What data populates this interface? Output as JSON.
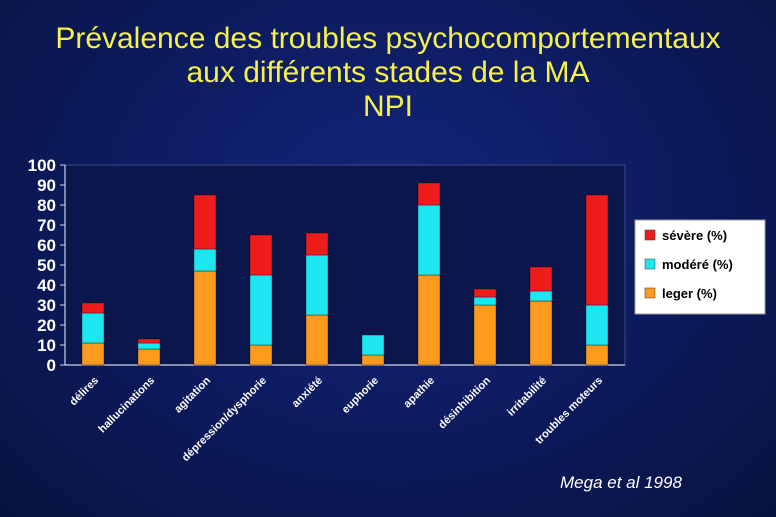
{
  "title": {
    "line1": "Prévalence des troubles psychocomportementaux",
    "line2": "aux différents stades de la MA",
    "line3": "NPI"
  },
  "source": "Mega et al 1998",
  "colors": {
    "severe": "#ee1c1c",
    "modere": "#1ee6f0",
    "leger": "#ff9a1e",
    "plot_bg": "#0a164c",
    "axis": "#cfd4e8",
    "title": "#f5f04a"
  },
  "chart_data": {
    "type": "bar",
    "stacked": true,
    "categories": [
      "délires",
      "hallucinations",
      "agitation",
      "dépression/dysphorie",
      "anxiété",
      "euphorie",
      "apathie",
      "désinhibition",
      "irritabilité",
      "troubles moteurs"
    ],
    "series": [
      {
        "name": "leger (%)",
        "values": [
          11,
          8,
          47,
          10,
          25,
          5,
          45,
          30,
          32,
          10
        ]
      },
      {
        "name": "modéré (%)",
        "values": [
          15,
          3,
          11,
          35,
          30,
          10,
          35,
          4,
          5,
          20
        ]
      },
      {
        "name": "sévère (%)",
        "values": [
          5,
          2,
          27,
          20,
          11,
          0,
          11,
          4,
          12,
          55
        ]
      }
    ],
    "legend_order": [
      "sévère (%)",
      "modéré (%)",
      "leger (%)"
    ],
    "ylim": [
      0,
      100
    ],
    "yticks": [
      0,
      10,
      20,
      30,
      40,
      50,
      60,
      70,
      80,
      90,
      100
    ],
    "legend_position": "right",
    "grid": false
  }
}
